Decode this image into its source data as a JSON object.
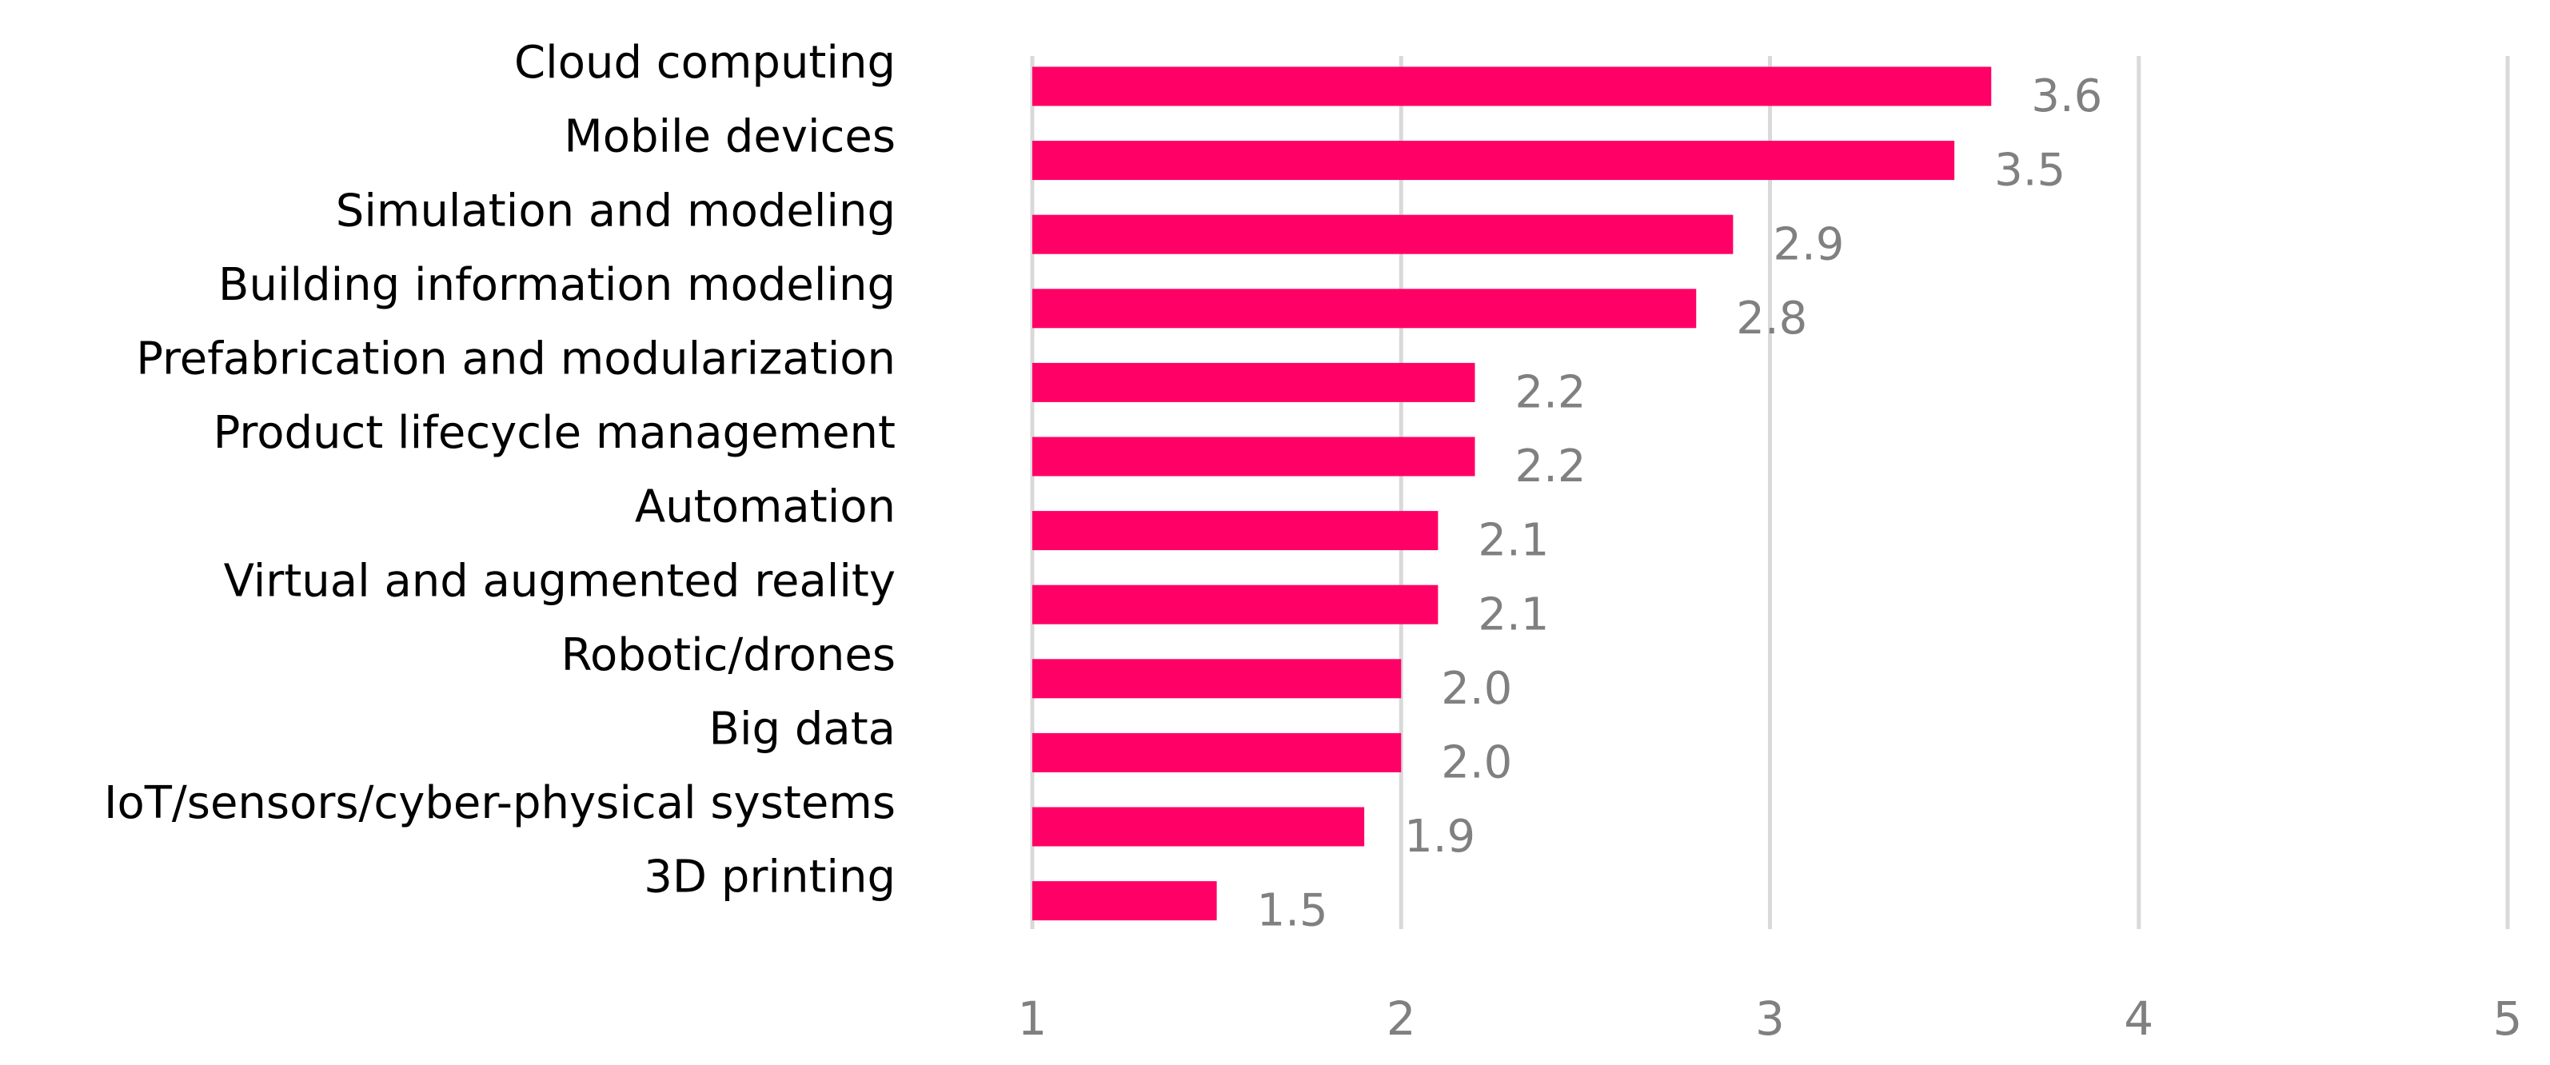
{
  "chart_data": {
    "type": "hbar",
    "categories": [
      "Cloud computing",
      "Mobile devices",
      "Simulation and modeling",
      "Building information modeling",
      "Prefabrication and modularization",
      "Product lifecycle management",
      "Automation",
      "Virtual and augmented reality",
      "Robotic/drones",
      "Big data",
      "IoT/sensors/cyber-physical systems",
      "3D printing"
    ],
    "values": [
      3.6,
      3.5,
      2.9,
      2.8,
      2.2,
      2.2,
      2.1,
      2.1,
      2.0,
      2.0,
      1.9,
      1.5
    ],
    "value_labels": [
      "3.6",
      "3.5",
      "2.9",
      "2.8",
      "2.2",
      "2.2",
      "2.1",
      "2.1",
      "2.0",
      "2.0",
      "1.9",
      "1.5"
    ],
    "color": "#ff0066",
    "xlim": [
      1,
      5
    ],
    "xticks": [
      1,
      2,
      3,
      4,
      5
    ],
    "grid": true
  }
}
